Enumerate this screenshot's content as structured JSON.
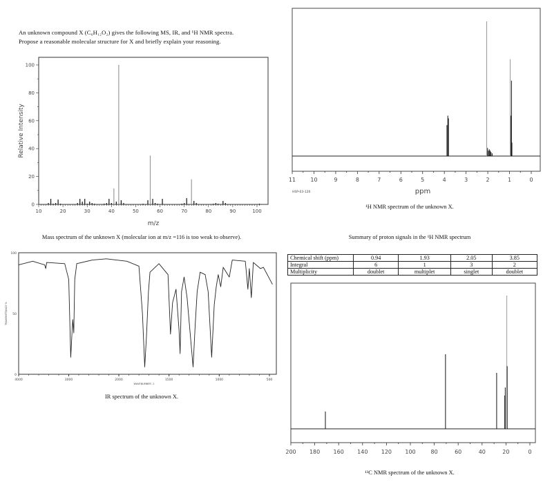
{
  "question": {
    "line1": "An unknown compound X (C₆H₁₂O₂) gives the following MS, IR, and ¹H NMR spectra.",
    "line2": "Propose a reasonable molecular structure for X and briefly explain your reasoning."
  },
  "captions": {
    "ms": "Mass spectrum of the unknown X (molecular ion at m/z =116 is too weak to observe).",
    "ir": "IR spectrum of the unknown X.",
    "h_nmr": "¹H NMR spectrum of the unknown X.",
    "c_nmr": "¹³C NMR spectrum of the unknown X.",
    "table_title": "Summary of proton signals in the ¹H NMR spectrum"
  },
  "proton_table": {
    "row_labels": [
      "Chemical shift (ppm)",
      "Integral",
      "Multiplicity"
    ],
    "columns": [
      {
        "shift": "0.94",
        "integral": "6",
        "multiplicity": "doublet"
      },
      {
        "shift": "1.93",
        "integral": "1",
        "multiplicity": "multiplet"
      },
      {
        "shift": "2.05",
        "integral": "3",
        "multiplicity": "singlet"
      },
      {
        "shift": "3.85",
        "integral": "2",
        "multiplicity": "doublet"
      }
    ]
  },
  "chart_data": [
    {
      "id": "ms",
      "type": "bar",
      "title": "",
      "xlabel": "m/z",
      "ylabel": "Relative Intensity",
      "xlim": [
        10,
        102
      ],
      "ylim": [
        0,
        105
      ],
      "xticks": [
        "10",
        "20",
        "30",
        "40",
        "50",
        "60",
        "70",
        "80",
        "90",
        "100"
      ],
      "yticks": [
        "0",
        "20",
        "40",
        "60",
        "80",
        "100"
      ],
      "peaks": [
        [
          14,
          1
        ],
        [
          15,
          4
        ],
        [
          16,
          0.5
        ],
        [
          17,
          1
        ],
        [
          18,
          3.5
        ],
        [
          19,
          0.5
        ],
        [
          26,
          1
        ],
        [
          27,
          4
        ],
        [
          28,
          2
        ],
        [
          29,
          4
        ],
        [
          30,
          0.5
        ],
        [
          31,
          2
        ],
        [
          32,
          1
        ],
        [
          33,
          0.5
        ],
        [
          37,
          0.5
        ],
        [
          38,
          1
        ],
        [
          39,
          4
        ],
        [
          40,
          1
        ],
        [
          41,
          11.5
        ],
        [
          42,
          2
        ],
        [
          43,
          100
        ],
        [
          44,
          3
        ],
        [
          45,
          1
        ],
        [
          53,
          0.5
        ],
        [
          55,
          3
        ],
        [
          56,
          35
        ],
        [
          57,
          4
        ],
        [
          58,
          1
        ],
        [
          59,
          0.5
        ],
        [
          61,
          4
        ],
        [
          69,
          0.5
        ],
        [
          70,
          1
        ],
        [
          71,
          4.5
        ],
        [
          73,
          18
        ],
        [
          74,
          2.5
        ],
        [
          75,
          1
        ],
        [
          82,
          0.5
        ],
        [
          83,
          1
        ],
        [
          84,
          0.5
        ],
        [
          86,
          2.5
        ],
        [
          87,
          1
        ],
        [
          101,
          0.5
        ]
      ]
    },
    {
      "id": "ir",
      "type": "line",
      "title": "",
      "xlabel": "WAVENUMBER -1",
      "ylabel": "TRANSMITTANCE %",
      "xlim": [
        4000,
        450
      ],
      "ylim": [
        0,
        100
      ],
      "xticks": [
        "4000",
        "3000",
        "2000",
        "1500",
        "1000",
        "500"
      ],
      "yticks": [
        "0",
        "50",
        "100"
      ],
      "points": [
        [
          4000,
          90
        ],
        [
          3720,
          93
        ],
        [
          3480,
          90
        ],
        [
          3460,
          87
        ],
        [
          3440,
          92
        ],
        [
          3080,
          91
        ],
        [
          3000,
          78
        ],
        [
          2960,
          14
        ],
        [
          2935,
          34
        ],
        [
          2920,
          45
        ],
        [
          2900,
          34
        ],
        [
          2880,
          78
        ],
        [
          2840,
          91
        ],
        [
          2530,
          94
        ],
        [
          2250,
          95
        ],
        [
          1920,
          93
        ],
        [
          1800,
          89
        ],
        [
          1765,
          50
        ],
        [
          1742,
          6
        ],
        [
          1725,
          31
        ],
        [
          1705,
          68
        ],
        [
          1690,
          84
        ],
        [
          1600,
          91
        ],
        [
          1510,
          82
        ],
        [
          1485,
          33
        ],
        [
          1465,
          59
        ],
        [
          1430,
          70
        ],
        [
          1400,
          36
        ],
        [
          1390,
          17
        ],
        [
          1375,
          68
        ],
        [
          1350,
          80
        ],
        [
          1320,
          63
        ],
        [
          1260,
          6
        ],
        [
          1240,
          40
        ],
        [
          1220,
          68
        ],
        [
          1190,
          84
        ],
        [
          1140,
          82
        ],
        [
          1110,
          68
        ],
        [
          1075,
          14
        ],
        [
          1050,
          57
        ],
        [
          1030,
          72
        ],
        [
          1010,
          82
        ],
        [
          985,
          72
        ],
        [
          960,
          88
        ],
        [
          900,
          80
        ],
        [
          870,
          94
        ],
        [
          740,
          93
        ],
        [
          715,
          70
        ],
        [
          700,
          87
        ],
        [
          680,
          63
        ],
        [
          660,
          92
        ],
        [
          590,
          87
        ],
        [
          560,
          88
        ],
        [
          470,
          74
        ]
      ]
    },
    {
      "id": "h_nmr",
      "type": "line",
      "title": "",
      "xlabel": "ppm",
      "ylabel": "",
      "annotation": "HSP-03-120",
      "xlim": [
        11,
        -0.5
      ],
      "xticks": [
        "11",
        "10",
        "9",
        "8",
        "7",
        "6",
        "5",
        "4",
        "3",
        "2",
        "1",
        "0"
      ],
      "peaks": [
        [
          3.88,
          23
        ],
        [
          3.84,
          30
        ],
        [
          3.81,
          28
        ],
        [
          2.05,
          100
        ],
        [
          2.01,
          6
        ],
        [
          1.97,
          4
        ],
        [
          1.93,
          5
        ],
        [
          1.89,
          4
        ],
        [
          1.85,
          3
        ],
        [
          1.8,
          2
        ],
        [
          0.97,
          72
        ],
        [
          0.93,
          30
        ],
        [
          0.91,
          56
        ],
        [
          0.89,
          10
        ]
      ]
    },
    {
      "id": "c_nmr",
      "type": "line",
      "title": "",
      "xlabel": "",
      "ylabel": "",
      "xlim": [
        200,
        -5
      ],
      "xticks": [
        "200",
        "180",
        "160",
        "140",
        "120",
        "100",
        "80",
        "60",
        "40",
        "20",
        "0"
      ],
      "peaks": [
        [
          171.1,
          13
        ],
        [
          70.6,
          56
        ],
        [
          27.8,
          42
        ],
        [
          21.0,
          25
        ],
        [
          20.6,
          31
        ],
        [
          19.3,
          100
        ],
        [
          19.0,
          47
        ]
      ]
    }
  ]
}
